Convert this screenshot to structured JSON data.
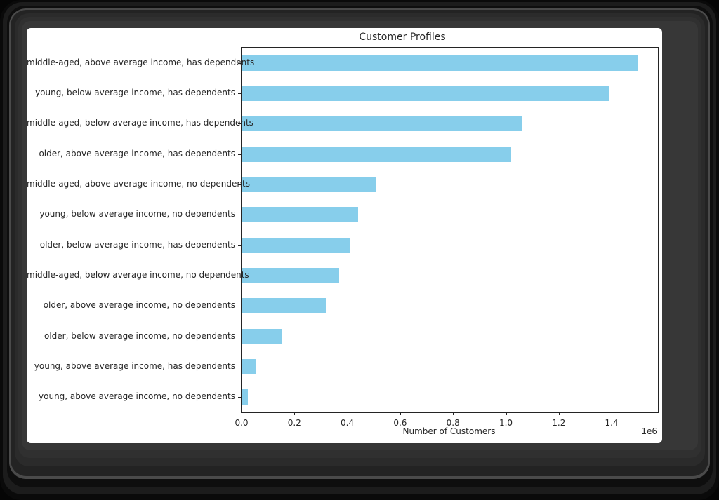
{
  "chart_data": {
    "type": "bar",
    "orientation": "horizontal",
    "title": "Customer Profiles",
    "xlabel": "Number of Customers",
    "ylabel": "",
    "categories": [
      "middle-aged, above average income, has dependents",
      "young, below average income, has dependents",
      "middle-aged, below average income, has dependents",
      "older, above average income, has dependents",
      "middle-aged, above average income, no dependents",
      "young, below average income, no dependents",
      "older, below average income, has dependents",
      "middle-aged, below average income, no dependents",
      "older, above average income, no dependents",
      "older, below average income, no dependents",
      "young, above average income, has dependents",
      "young, above average income, no dependents"
    ],
    "values": [
      1500000,
      1390000,
      1060000,
      1020000,
      510000,
      440000,
      410000,
      370000,
      320000,
      150000,
      53000,
      25000
    ],
    "xlim": [
      0,
      1575000
    ],
    "x_ticks": [
      0,
      200000,
      400000,
      600000,
      800000,
      1000000,
      1200000,
      1400000
    ],
    "x_tick_labels": [
      "0.0",
      "0.2",
      "0.4",
      "0.6",
      "0.8",
      "1.0",
      "1.2",
      "1.4"
    ],
    "offset_label": "1e6",
    "bar_color": "#87CEEB",
    "grid": false,
    "legend_position": "none"
  }
}
